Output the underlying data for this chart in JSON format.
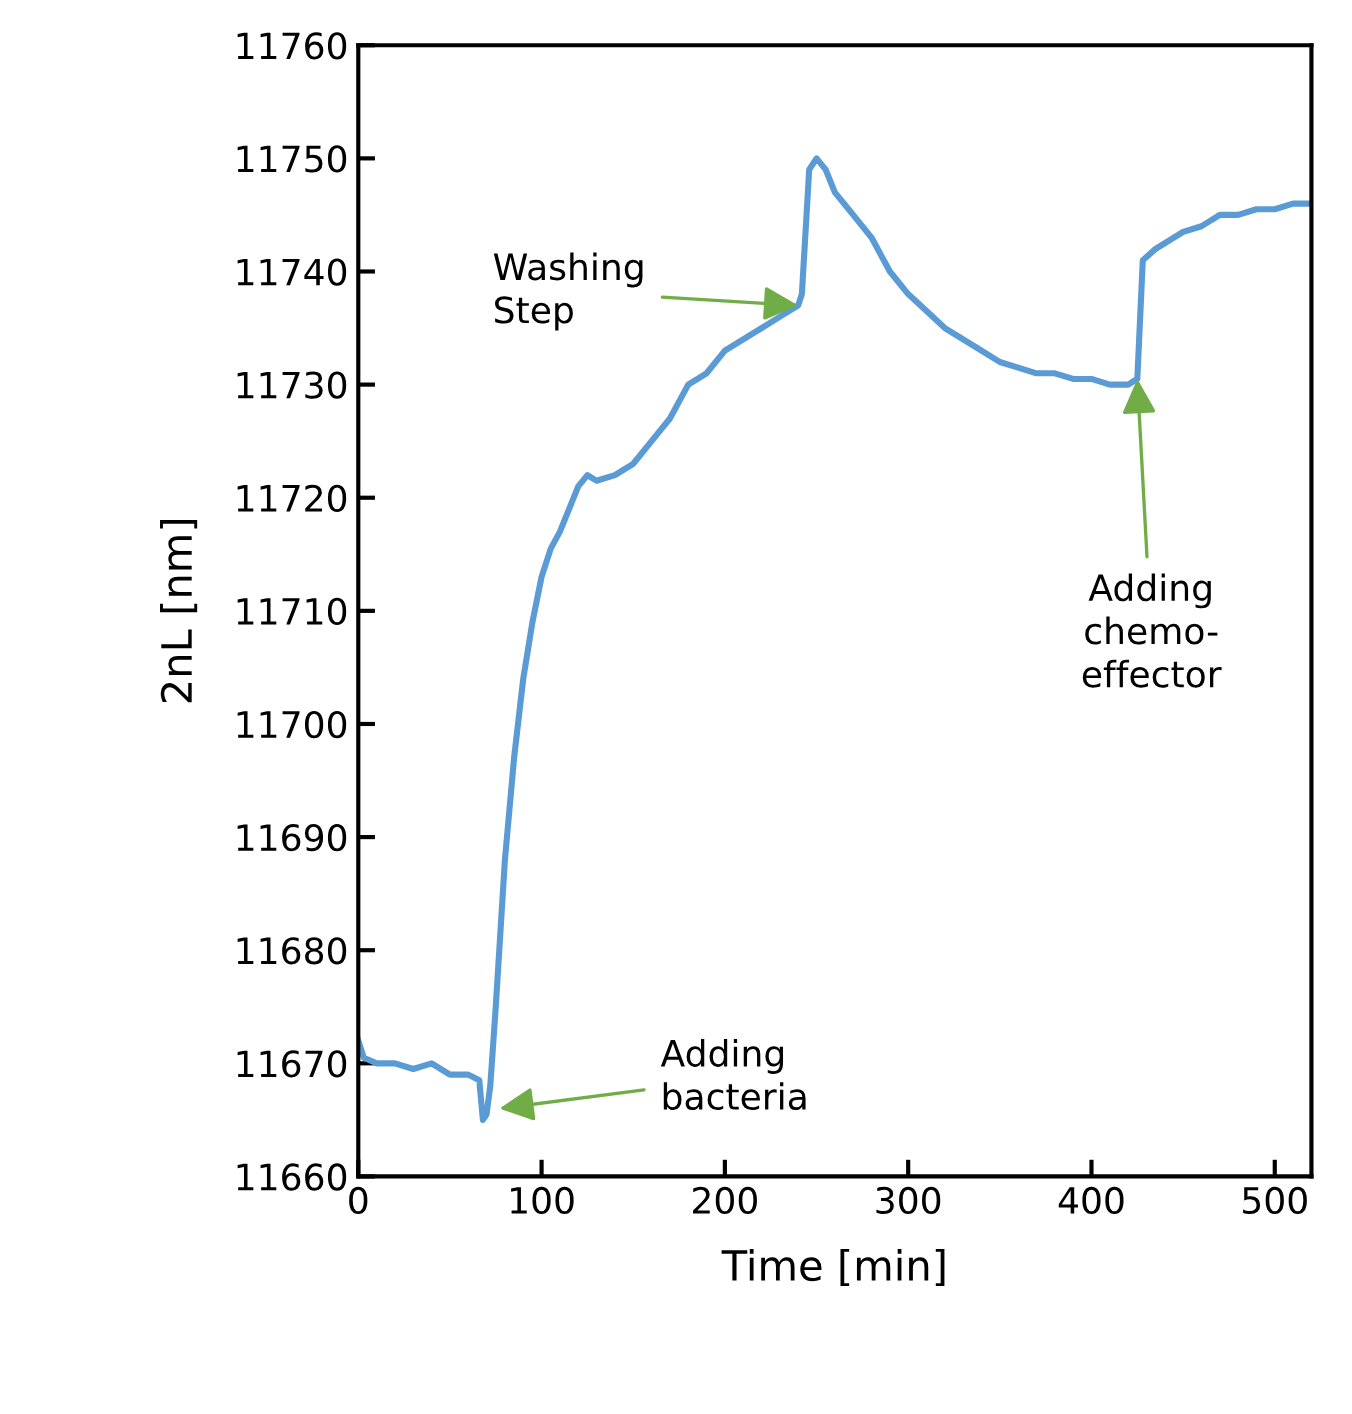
{
  "chart_data": {
    "type": "line",
    "xlabel": "Time [min]",
    "ylabel": "2nL [nm]",
    "xlim": [
      0,
      520
    ],
    "xticks": [
      0,
      100,
      200,
      300,
      400,
      500
    ],
    "ylim": [
      11660,
      11760
    ],
    "yticks": [
      11660,
      11670,
      11680,
      11690,
      11700,
      11710,
      11720,
      11730,
      11740,
      11750,
      11760
    ],
    "grid": false,
    "marker": "none",
    "line_style": "solid",
    "series": [
      {
        "color": "#5b9bd5",
        "x": [
          0,
          3,
          10,
          20,
          30,
          40,
          50,
          60,
          66,
          68,
          70,
          72,
          75,
          80,
          85,
          90,
          95,
          100,
          105,
          110,
          115,
          120,
          125,
          130,
          140,
          150,
          160,
          170,
          180,
          190,
          200,
          210,
          220,
          230,
          240,
          242,
          246,
          250,
          255,
          260,
          270,
          280,
          290,
          300,
          310,
          320,
          330,
          340,
          350,
          360,
          370,
          380,
          390,
          400,
          410,
          420,
          425,
          428,
          435,
          450,
          460,
          470,
          480,
          490,
          500,
          510,
          520
        ],
        "values": [
          11672,
          11670.5,
          11670,
          11670,
          11669.5,
          11670,
          11669,
          11669,
          11668.5,
          11665,
          11665.5,
          11668,
          11675,
          11688,
          11697,
          11704,
          11709,
          11713,
          11715.5,
          11717,
          11719,
          11721,
          11722,
          11721.5,
          11722,
          11723,
          11725,
          11727,
          11730,
          11731,
          11733,
          11734,
          11735,
          11736,
          11737,
          11738,
          11749,
          11750,
          11749,
          11747,
          11745,
          11743,
          11740,
          11738,
          11736.5,
          11735,
          11734,
          11733,
          11732,
          11731.5,
          11731,
          11731,
          11730.5,
          11730.5,
          11730,
          11730,
          11730.5,
          11741,
          11742,
          11743.5,
          11744,
          11745,
          11745,
          11745.5,
          11745.5,
          11746,
          11746
        ]
      }
    ],
    "annotations": [
      {
        "text": "Adding\nbacteria",
        "x": 77,
        "y": 11666
      },
      {
        "text": "Washing\nStep",
        "x": 240,
        "y": 11737
      },
      {
        "text": "Adding\nchemo-\neffector",
        "x": 425,
        "y": 11730.5
      }
    ]
  }
}
